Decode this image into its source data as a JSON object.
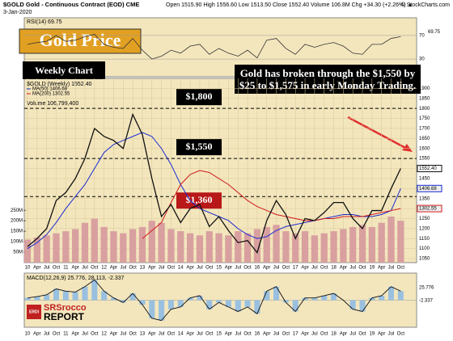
{
  "chart_data": {
    "type": "line",
    "header": {
      "symbol": "$GOLD Gold - Continuous Contract (EOD) CME",
      "date": "3-Jan-2020",
      "stats": "Open 1515.90  High 1556.60  Low 1513.50  Close 1552.40  Volume 106.8M  Chg +34.30 (+2.26%) ▲",
      "source": "© StockCharts.com"
    },
    "title": "Gold Price",
    "subtitle": "Weekly Chart",
    "annotation": "Gold has broken through the $1,550 by $25 to $1,575 in early Monday Trading.",
    "logo": {
      "top": "SRSrocco",
      "bottom": "REPORT",
      "badge": "ERDI"
    },
    "levels": [
      {
        "value": 1800,
        "label": "$1,800"
      },
      {
        "value": 1550,
        "label": "$1,550"
      },
      {
        "value": 1360,
        "label": "$1,360"
      }
    ],
    "categories": [
      "10",
      "Apr",
      "Jul",
      "Oct",
      "11",
      "Apr",
      "Jul",
      "Oct",
      "12",
      "Apr",
      "Jul",
      "Oct",
      "13",
      "Apr",
      "Jul",
      "Oct",
      "14",
      "Apr",
      "Jul",
      "Oct",
      "15",
      "Apr",
      "Jul",
      "Oct",
      "16",
      "Apr",
      "Jul",
      "Oct",
      "17",
      "Apr",
      "Jul",
      "Oct",
      "18",
      "Apr",
      "Jul",
      "Oct",
      "19",
      "Apr",
      "Jul",
      "Oct"
    ],
    "ylim": [
      1030,
      1950
    ],
    "yticks": [
      1050,
      1100,
      1150,
      1200,
      1250,
      1300,
      1350,
      1400,
      1450,
      1500,
      1550,
      1600,
      1650,
      1700,
      1750,
      1800,
      1850,
      1900
    ],
    "grid": true,
    "legend": {
      "price": "$GOLD (Weekly) 1552.40",
      "volume": "Volume 106,799,400"
    },
    "series": [
      {
        "name": "MA(50) 1406.68",
        "color": "#1a2bd0",
        "end_label": "1406.68",
        "values": [
          1100,
          1130,
          1170,
          1230,
          1300,
          1360,
          1420,
          1500,
          1580,
          1620,
          1640,
          1660,
          1680,
          1660,
          1600,
          1520,
          1420,
          1340,
          1300,
          1280,
          1260,
          1240,
          1200,
          1170,
          1150,
          1160,
          1190,
          1210,
          1220,
          1230,
          1240,
          1250,
          1260,
          1270,
          1270,
          1260,
          1260,
          1270,
          1290,
          1400
        ]
      },
      {
        "name": "MA(200) 1302.55",
        "color": "#d01a1a",
        "end_label": "1302.55",
        "values": [
          null,
          null,
          null,
          null,
          null,
          null,
          null,
          null,
          null,
          null,
          null,
          null,
          1150,
          1190,
          1230,
          1330,
          1420,
          1470,
          1490,
          1480,
          1450,
          1420,
          1380,
          1340,
          1310,
          1290,
          1270,
          1260,
          1250,
          1240,
          1240,
          1250,
          1250,
          1260,
          1260,
          1260,
          1270,
          1280,
          1290,
          1300
        ]
      },
      {
        "name": "$GOLD",
        "color": "#111111",
        "end_label": "1552.40",
        "values": [
          1110,
          1150,
          1200,
          1340,
          1380,
          1450,
          1550,
          1700,
          1660,
          1640,
          1600,
          1770,
          1670,
          1450,
          1260,
          1320,
          1230,
          1300,
          1320,
          1210,
          1260,
          1190,
          1130,
          1140,
          1080,
          1240,
          1340,
          1270,
          1150,
          1250,
          1240,
          1280,
          1330,
          1330,
          1250,
          1200,
          1290,
          1290,
          1400,
          1500
        ]
      }
    ],
    "volume": {
      "color": "#d9a0a0",
      "ylim": [
        0,
        270
      ],
      "yticks": [
        {
          "value": 50,
          "label": "50M"
        },
        {
          "value": 100,
          "label": "100M"
        },
        {
          "value": 150,
          "label": "150M"
        },
        {
          "value": 200,
          "label": "200M"
        },
        {
          "value": 250,
          "label": "250M"
        }
      ],
      "values": [
        110,
        120,
        130,
        140,
        150,
        160,
        190,
        210,
        170,
        150,
        140,
        160,
        170,
        200,
        190,
        160,
        150,
        140,
        130,
        150,
        140,
        130,
        150,
        140,
        160,
        170,
        180,
        150,
        140,
        150,
        130,
        140,
        150,
        160,
        170,
        180,
        170,
        190,
        220,
        200
      ]
    },
    "rsi": {
      "label": "RSI(14) 69.75",
      "end_label": "69.75",
      "color": "#333333",
      "ylim": [
        0,
        100
      ],
      "yticks": [
        30,
        70
      ],
      "values": [
        55,
        58,
        60,
        70,
        60,
        62,
        68,
        72,
        55,
        50,
        48,
        65,
        45,
        30,
        35,
        45,
        40,
        52,
        55,
        38,
        48,
        40,
        35,
        45,
        32,
        62,
        65,
        48,
        38,
        55,
        50,
        55,
        58,
        52,
        40,
        38,
        55,
        55,
        65,
        68
      ]
    },
    "macd": {
      "label": "MACD(12,26,9) 25.776, 28.113, -2.337",
      "end_labels": [
        "25.776",
        "-2.337"
      ],
      "color": "#111111",
      "ylim": [
        -60,
        60
      ],
      "values": [
        5,
        8,
        12,
        25,
        20,
        18,
        30,
        45,
        20,
        5,
        -5,
        15,
        -10,
        -40,
        -45,
        -20,
        -15,
        5,
        10,
        -20,
        -5,
        -15,
        -25,
        -15,
        -30,
        20,
        30,
        -5,
        -25,
        5,
        5,
        10,
        15,
        0,
        -20,
        -25,
        5,
        10,
        30,
        20
      ]
    }
  }
}
